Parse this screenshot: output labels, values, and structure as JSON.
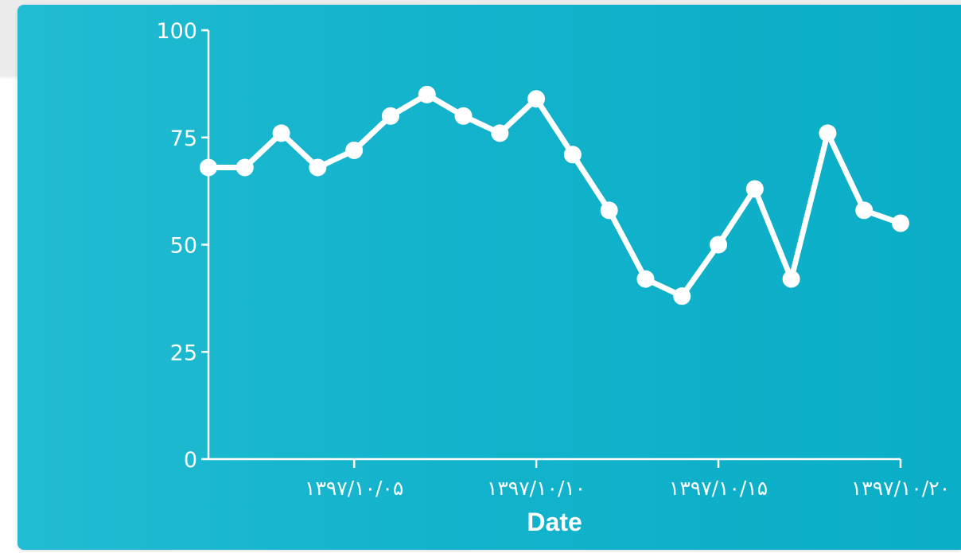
{
  "colors": {
    "card_start": "#21bcd2",
    "card_mid": "#13b3cc",
    "card_end": "#0aaec6",
    "line": "#ffffff",
    "axis": "#ffffff"
  },
  "chart_data": {
    "type": "line",
    "xlabel": "Date",
    "ylabel": "",
    "ylim": [
      0,
      100
    ],
    "y_ticks": [
      0,
      25,
      50,
      75,
      100
    ],
    "x_range": [
      1,
      20
    ],
    "x_ticks": [
      {
        "x": 5,
        "label": "۱۳۹۷/۱۰/۰۵"
      },
      {
        "x": 10,
        "label": "۱۳۹۷/۱۰/۱۰"
      },
      {
        "x": 15,
        "label": "۱۳۹۷/۱۰/۱۵"
      },
      {
        "x": 20,
        "label": "۱۳۹۷/۱۰/۲۰"
      }
    ],
    "series": [
      {
        "name": "",
        "points": [
          {
            "x": 1,
            "y": 68
          },
          {
            "x": 2,
            "y": 68
          },
          {
            "x": 3,
            "y": 76
          },
          {
            "x": 4,
            "y": 68
          },
          {
            "x": 5,
            "y": 72
          },
          {
            "x": 6,
            "y": 80
          },
          {
            "x": 7,
            "y": 85
          },
          {
            "x": 8,
            "y": 80
          },
          {
            "x": 9,
            "y": 76
          },
          {
            "x": 10,
            "y": 84
          },
          {
            "x": 11,
            "y": 71
          },
          {
            "x": 12,
            "y": 58
          },
          {
            "x": 13,
            "y": 42
          },
          {
            "x": 14,
            "y": 38
          },
          {
            "x": 15,
            "y": 50
          },
          {
            "x": 16,
            "y": 63
          },
          {
            "x": 17,
            "y": 42
          },
          {
            "x": 18,
            "y": 76
          },
          {
            "x": 19,
            "y": 58
          },
          {
            "x": 20,
            "y": 55
          }
        ]
      }
    ]
  }
}
